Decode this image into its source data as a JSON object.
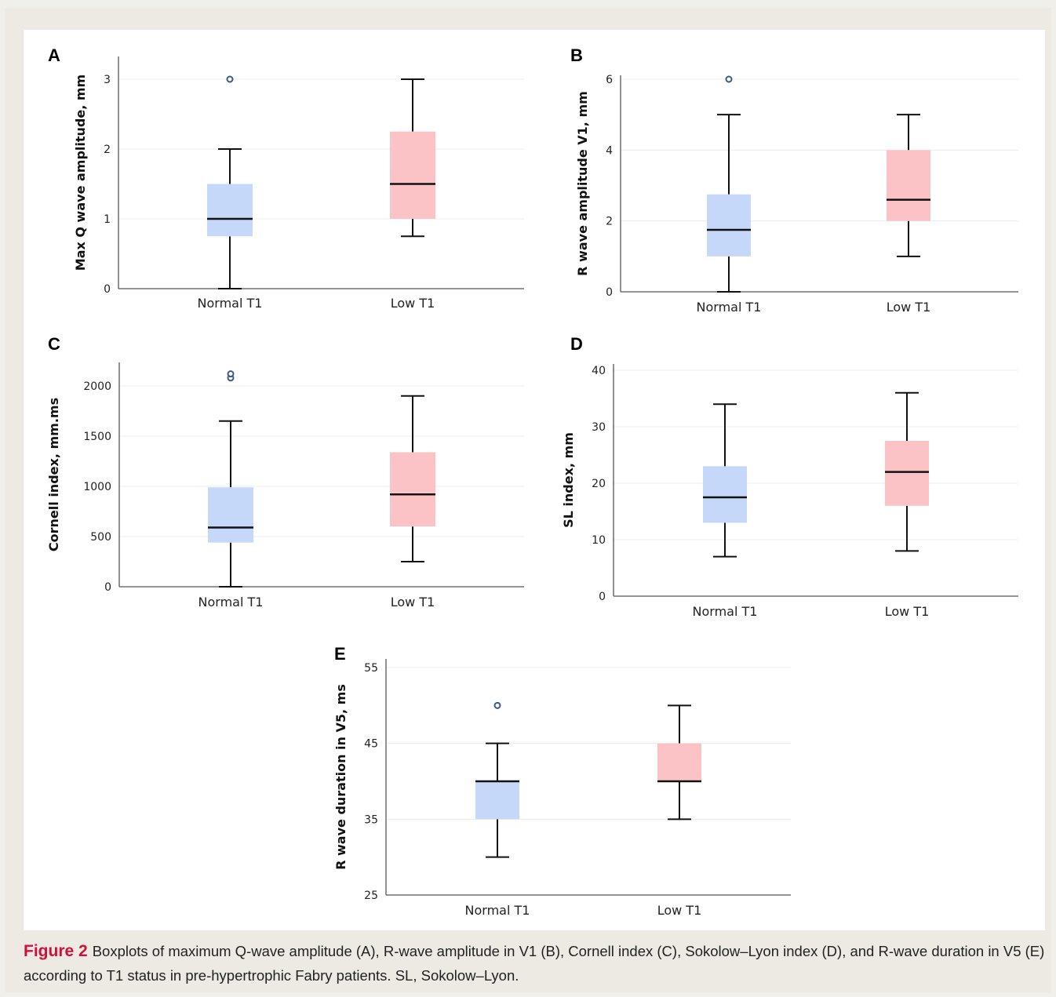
{
  "colors": {
    "normal_fill": "#c5d8f9",
    "low_fill": "#fbc3c6",
    "outlier_stroke": "#3c5a86",
    "caption_accent": "#d0103a"
  },
  "chart_data": [
    {
      "panel": "A",
      "type": "boxplot",
      "ylabel": "Max Q wave amplitude, mm",
      "ylim": [
        0,
        3
      ],
      "yticks": [
        0,
        1,
        2,
        3
      ],
      "categories": [
        "Normal T1",
        "Low T1"
      ],
      "groups": [
        {
          "min": 0,
          "q1": 0.75,
          "median": 1.0,
          "q3": 1.5,
          "max": 2.0,
          "outliers": [
            3
          ]
        },
        {
          "min": 0.75,
          "q1": 1.0,
          "median": 1.5,
          "q3": 2.25,
          "max": 3.0,
          "outliers": []
        }
      ]
    },
    {
      "panel": "B",
      "type": "boxplot",
      "ylabel": "R wave amplitude V1, mm",
      "ylim": [
        0,
        6
      ],
      "yticks": [
        0,
        2,
        4,
        6
      ],
      "categories": [
        "Normal T1",
        "Low T1"
      ],
      "groups": [
        {
          "min": 0,
          "q1": 1.0,
          "median": 1.75,
          "q3": 2.75,
          "max": 5.0,
          "outliers": [
            6
          ]
        },
        {
          "min": 1.0,
          "q1": 2.0,
          "median": 2.6,
          "q3": 4.0,
          "max": 5.0,
          "outliers": []
        }
      ]
    },
    {
      "panel": "C",
      "type": "boxplot",
      "ylabel": "Cornell index, mm.ms",
      "ylim": [
        0,
        2000
      ],
      "yticks": [
        0,
        500,
        1000,
        1500,
        2000
      ],
      "categories": [
        "Normal T1",
        "Low T1"
      ],
      "groups": [
        {
          "min": 0,
          "q1": 440,
          "median": 590,
          "q3": 990,
          "max": 1650,
          "outliers": [
            2080,
            2120
          ]
        },
        {
          "min": 250,
          "q1": 600,
          "median": 920,
          "q3": 1340,
          "max": 1900,
          "outliers": []
        }
      ]
    },
    {
      "panel": "D",
      "type": "boxplot",
      "ylabel": "SL index, mm",
      "ylim": [
        0,
        40
      ],
      "yticks": [
        0,
        10,
        20,
        30,
        40
      ],
      "categories": [
        "Normal T1",
        "Low T1"
      ],
      "groups": [
        {
          "min": 7,
          "q1": 13,
          "median": 17.5,
          "q3": 23,
          "max": 34,
          "outliers": []
        },
        {
          "min": 8,
          "q1": 16,
          "median": 22,
          "q3": 27.5,
          "max": 36,
          "outliers": []
        }
      ]
    },
    {
      "panel": "E",
      "type": "boxplot",
      "ylabel": "R wave duration in V5, ms",
      "ylim": [
        25,
        55
      ],
      "yticks": [
        25,
        35,
        45,
        55
      ],
      "categories": [
        "Normal T1",
        "Low T1"
      ],
      "groups": [
        {
          "min": 30,
          "q1": 35,
          "median": 40,
          "q3": 40,
          "max": 45,
          "outliers": [
            50
          ]
        },
        {
          "min": 35,
          "q1": 40,
          "median": 40,
          "q3": 45,
          "max": 50,
          "outliers": []
        }
      ]
    }
  ],
  "caption": {
    "label": "Figure 2",
    "text": "Boxplots of maximum Q-wave amplitude (A), R-wave amplitude in V1 (B), Cornell index (C), Sokolow–Lyon index (D), and R-wave duration in V5 (E) according to T1 status in pre-hypertrophic Fabry patients. SL, Sokolow–Lyon."
  }
}
